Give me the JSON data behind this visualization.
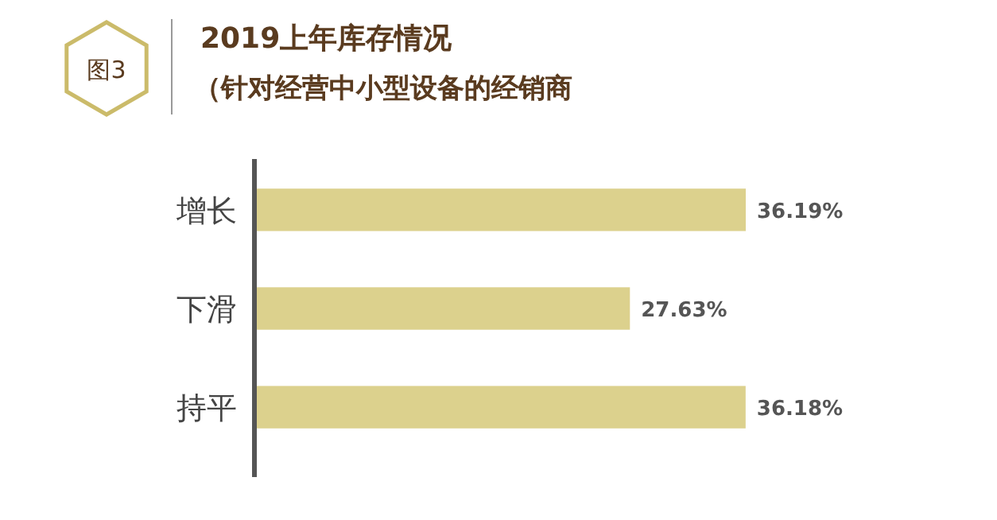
{
  "chart_data": {
    "type": "bar",
    "orientation": "horizontal",
    "title": "2019上年库存情况",
    "subtitle": "（针对经营中小型设备的经销商",
    "annotations": [
      "图3"
    ],
    "categories": [
      "增长",
      "下滑",
      "持平"
    ],
    "values": [
      36.19,
      27.63,
      36.18
    ],
    "color": "#dcd18d",
    "value_labels": [
      "36.19%",
      "27.63%",
      "36.18%"
    ]
  }
}
